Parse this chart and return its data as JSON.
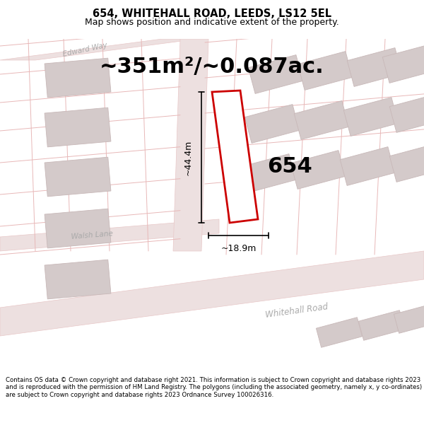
{
  "title": "654, WHITEHALL ROAD, LEEDS, LS12 5EL",
  "subtitle": "Map shows position and indicative extent of the property.",
  "area_label": "~351m²/~0.087ac.",
  "plot_number": "654",
  "dim_width": "~18.9m",
  "dim_height": "~44.4m",
  "footer": "Contains OS data © Crown copyright and database right 2021. This information is subject to Crown copyright and database rights 2023 and is reproduced with the permission of HM Land Registry. The polygons (including the associated geometry, namely x, y co-ordinates) are subject to Crown copyright and database rights 2023 Ordnance Survey 100026316.",
  "bg_color": "#ffffff",
  "map_bg": "#f7f0f0",
  "road_fill": "#ede0e0",
  "road_edge": "#e8c8c8",
  "parcel_line": "#e8b8b8",
  "building_fill": "#d4caca",
  "building_edge": "#c8b8b8",
  "plot_color": "#cc0000",
  "plot_fill": "#ffffff",
  "road_label_color": "#aaaaaa",
  "title_fontsize": 10.5,
  "subtitle_fontsize": 9,
  "area_fontsize": 22,
  "plot_label_fontsize": 22,
  "dim_fontsize": 9,
  "footer_fontsize": 6.2
}
